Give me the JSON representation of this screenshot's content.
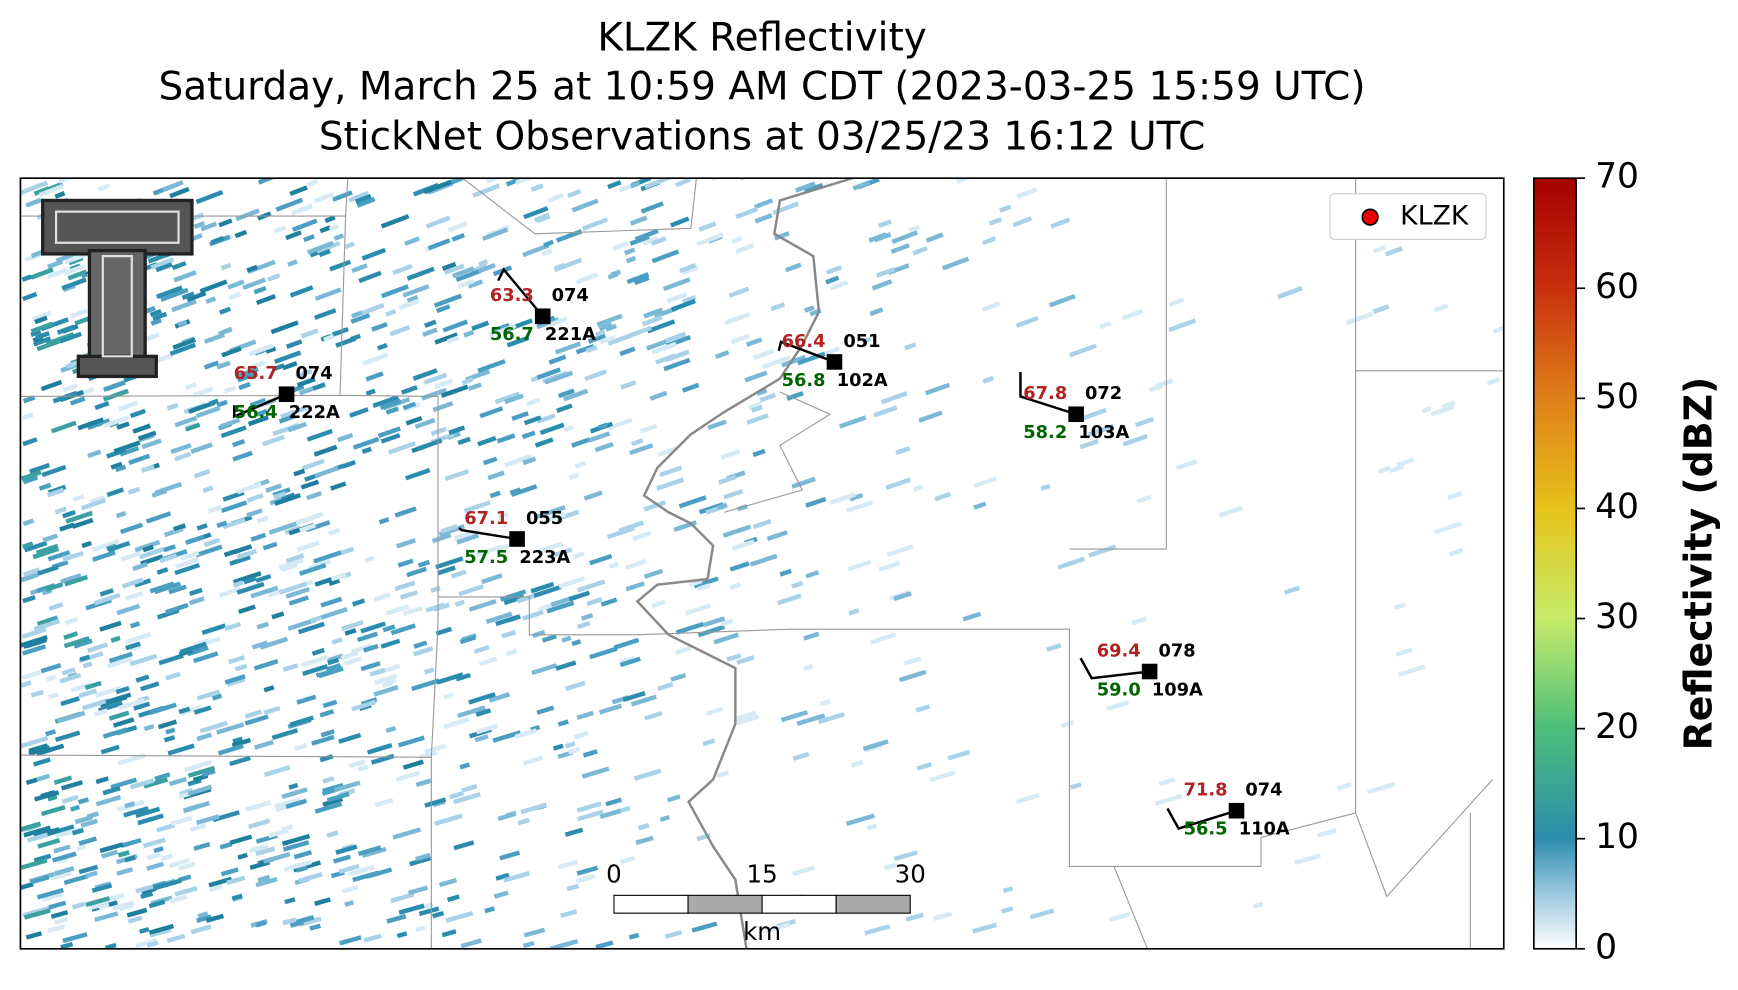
{
  "header": {
    "title_lines": [
      "KLZK Reflectivity",
      "Saturday, March 25 at 10:59 AM CDT (2023-03-25 15:59 UTC)",
      "StickNet Observations at 03/25/23 16:12 UTC"
    ]
  },
  "legend": {
    "label": "KLZK"
  },
  "stations": [
    {
      "id": "221A",
      "temperature": "63.3",
      "dewpoint": "56.7",
      "pressure": "074"
    },
    {
      "id": "222A",
      "temperature": "65.7",
      "dewpoint": "56.4",
      "pressure": "074"
    },
    {
      "id": "102A",
      "temperature": "66.4",
      "dewpoint": "56.8",
      "pressure": "051"
    },
    {
      "id": "103A",
      "temperature": "67.8",
      "dewpoint": "58.2",
      "pressure": "072"
    },
    {
      "id": "223A",
      "temperature": "67.1",
      "dewpoint": "57.5",
      "pressure": "055"
    },
    {
      "id": "109A",
      "temperature": "69.4",
      "dewpoint": "59.0",
      "pressure": "078"
    },
    {
      "id": "110A",
      "temperature": "71.8",
      "dewpoint": "56.5",
      "pressure": "074"
    }
  ],
  "colorbar": {
    "label": "Reflectivity (dBZ)",
    "lim": [
      0,
      70
    ],
    "ticks": [
      0,
      10,
      20,
      30,
      40,
      50,
      60,
      70
    ]
  },
  "scalebar": {
    "ticks": [
      0,
      15,
      30
    ],
    "unit": "km"
  }
}
